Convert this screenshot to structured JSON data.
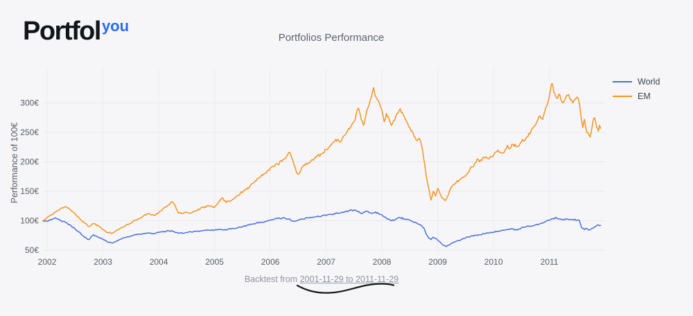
{
  "logo": {
    "word": "Portfol",
    "accent": "you"
  },
  "backtest": {
    "prefix": "Backtest from",
    "range": "2001-11-29 to 2011-11-29"
  },
  "chart_data": {
    "type": "line",
    "title": "Portfolios Performance",
    "xlabel": "",
    "ylabel": "Performance of 100€",
    "xlim": [
      2001.925,
      2012.01
    ],
    "ylim": [
      46.5,
      359.4
    ],
    "xticks": [
      2002,
      2003,
      2004,
      2005,
      2006,
      2007,
      2008,
      2009,
      2010,
      2011
    ],
    "yticks": [
      50,
      100,
      150,
      200,
      250,
      300
    ],
    "ytick_suffix": "€",
    "grid": true,
    "legend_position": "top-right",
    "series": [
      {
        "name": "World",
        "color": "#4a6fd9",
        "points": [
          [
            2001.92,
            100
          ],
          [
            2002.0,
            99
          ],
          [
            2002.08,
            102
          ],
          [
            2002.15,
            105
          ],
          [
            2002.25,
            100
          ],
          [
            2002.33,
            97
          ],
          [
            2002.42,
            92
          ],
          [
            2002.5,
            86
          ],
          [
            2002.58,
            80
          ],
          [
            2002.67,
            72
          ],
          [
            2002.75,
            68
          ],
          [
            2002.83,
            76
          ],
          [
            2002.92,
            72
          ],
          [
            2003.0,
            69
          ],
          [
            2003.08,
            64
          ],
          [
            2003.17,
            62
          ],
          [
            2003.25,
            66
          ],
          [
            2003.33,
            69
          ],
          [
            2003.42,
            72
          ],
          [
            2003.5,
            74
          ],
          [
            2003.58,
            76
          ],
          [
            2003.67,
            77
          ],
          [
            2003.75,
            78
          ],
          [
            2003.83,
            79
          ],
          [
            2003.92,
            78
          ],
          [
            2004.0,
            80
          ],
          [
            2004.08,
            81
          ],
          [
            2004.17,
            83
          ],
          [
            2004.25,
            82
          ],
          [
            2004.33,
            80
          ],
          [
            2004.42,
            79
          ],
          [
            2004.5,
            80
          ],
          [
            2004.58,
            81
          ],
          [
            2004.67,
            82
          ],
          [
            2004.75,
            83
          ],
          [
            2004.83,
            84
          ],
          [
            2004.92,
            84
          ],
          [
            2005.0,
            84
          ],
          [
            2005.08,
            85
          ],
          [
            2005.17,
            84
          ],
          [
            2005.25,
            86
          ],
          [
            2005.33,
            87
          ],
          [
            2005.42,
            88
          ],
          [
            2005.5,
            90
          ],
          [
            2005.58,
            92
          ],
          [
            2005.67,
            94
          ],
          [
            2005.75,
            96
          ],
          [
            2005.83,
            97
          ],
          [
            2005.92,
            99
          ],
          [
            2006.0,
            101
          ],
          [
            2006.08,
            103
          ],
          [
            2006.17,
            104
          ],
          [
            2006.25,
            105
          ],
          [
            2006.33,
            103
          ],
          [
            2006.42,
            99
          ],
          [
            2006.5,
            101
          ],
          [
            2006.58,
            103
          ],
          [
            2006.67,
            105
          ],
          [
            2006.75,
            106
          ],
          [
            2006.83,
            107
          ],
          [
            2006.92,
            108
          ],
          [
            2007.0,
            109
          ],
          [
            2007.08,
            111
          ],
          [
            2007.17,
            112
          ],
          [
            2007.25,
            113
          ],
          [
            2007.33,
            115
          ],
          [
            2007.42,
            117
          ],
          [
            2007.5,
            118
          ],
          [
            2007.58,
            116
          ],
          [
            2007.63,
            112
          ],
          [
            2007.67,
            114
          ],
          [
            2007.75,
            116
          ],
          [
            2007.83,
            113
          ],
          [
            2007.92,
            114
          ],
          [
            2008.0,
            110
          ],
          [
            2008.08,
            104
          ],
          [
            2008.17,
            100
          ],
          [
            2008.25,
            103
          ],
          [
            2008.33,
            105
          ],
          [
            2008.42,
            103
          ],
          [
            2008.5,
            101
          ],
          [
            2008.58,
            97
          ],
          [
            2008.67,
            94
          ],
          [
            2008.75,
            88
          ],
          [
            2008.79,
            78
          ],
          [
            2008.83,
            72
          ],
          [
            2008.88,
            68
          ],
          [
            2008.92,
            72
          ],
          [
            2009.0,
            67
          ],
          [
            2009.08,
            60
          ],
          [
            2009.15,
            56
          ],
          [
            2009.21,
            59
          ],
          [
            2009.25,
            62
          ],
          [
            2009.33,
            65
          ],
          [
            2009.42,
            68
          ],
          [
            2009.5,
            71
          ],
          [
            2009.58,
            73
          ],
          [
            2009.67,
            75
          ],
          [
            2009.75,
            76
          ],
          [
            2009.83,
            78
          ],
          [
            2009.92,
            79
          ],
          [
            2010.0,
            81
          ],
          [
            2010.08,
            82
          ],
          [
            2010.17,
            84
          ],
          [
            2010.25,
            85
          ],
          [
            2010.33,
            86
          ],
          [
            2010.42,
            84
          ],
          [
            2010.5,
            88
          ],
          [
            2010.58,
            90
          ],
          [
            2010.67,
            91
          ],
          [
            2010.75,
            93
          ],
          [
            2010.83,
            95
          ],
          [
            2010.92,
            98
          ],
          [
            2011.0,
            101
          ],
          [
            2011.08,
            104
          ],
          [
            2011.13,
            105
          ],
          [
            2011.17,
            103
          ],
          [
            2011.25,
            102
          ],
          [
            2011.33,
            103
          ],
          [
            2011.42,
            102
          ],
          [
            2011.5,
            101
          ],
          [
            2011.54,
            100
          ],
          [
            2011.58,
            88
          ],
          [
            2011.63,
            85
          ],
          [
            2011.67,
            87
          ],
          [
            2011.71,
            84
          ],
          [
            2011.75,
            86
          ],
          [
            2011.79,
            88
          ],
          [
            2011.83,
            90
          ],
          [
            2011.88,
            93
          ],
          [
            2011.92,
            92
          ]
        ]
      },
      {
        "name": "EM",
        "color": "#f7921e",
        "points": [
          [
            2001.92,
            100
          ],
          [
            2002.0,
            105
          ],
          [
            2002.08,
            110
          ],
          [
            2002.17,
            116
          ],
          [
            2002.25,
            121
          ],
          [
            2002.33,
            124
          ],
          [
            2002.42,
            118
          ],
          [
            2002.5,
            112
          ],
          [
            2002.58,
            104
          ],
          [
            2002.67,
            96
          ],
          [
            2002.75,
            90
          ],
          [
            2002.83,
            95
          ],
          [
            2002.92,
            91
          ],
          [
            2003.0,
            85
          ],
          [
            2003.08,
            80
          ],
          [
            2003.17,
            79
          ],
          [
            2003.25,
            84
          ],
          [
            2003.33,
            88
          ],
          [
            2003.42,
            93
          ],
          [
            2003.5,
            96
          ],
          [
            2003.58,
            101
          ],
          [
            2003.67,
            105
          ],
          [
            2003.75,
            110
          ],
          [
            2003.83,
            112
          ],
          [
            2003.92,
            109
          ],
          [
            2004.0,
            114
          ],
          [
            2004.08,
            121
          ],
          [
            2004.17,
            127
          ],
          [
            2004.25,
            132
          ],
          [
            2004.3,
            124
          ],
          [
            2004.35,
            113
          ],
          [
            2004.42,
            112
          ],
          [
            2004.5,
            114
          ],
          [
            2004.58,
            113
          ],
          [
            2004.67,
            117
          ],
          [
            2004.75,
            121
          ],
          [
            2004.83,
            124
          ],
          [
            2004.92,
            125
          ],
          [
            2005.0,
            123
          ],
          [
            2005.08,
            132
          ],
          [
            2005.13,
            139
          ],
          [
            2005.21,
            131
          ],
          [
            2005.29,
            134
          ],
          [
            2005.38,
            140
          ],
          [
            2005.46,
            146
          ],
          [
            2005.54,
            152
          ],
          [
            2005.63,
            158
          ],
          [
            2005.71,
            165
          ],
          [
            2005.79,
            172
          ],
          [
            2005.88,
            179
          ],
          [
            2005.96,
            186
          ],
          [
            2006.04,
            192
          ],
          [
            2006.13,
            196
          ],
          [
            2006.21,
            201
          ],
          [
            2006.29,
            209
          ],
          [
            2006.35,
            216
          ],
          [
            2006.42,
            196
          ],
          [
            2006.46,
            185
          ],
          [
            2006.5,
            179
          ],
          [
            2006.58,
            192
          ],
          [
            2006.67,
            198
          ],
          [
            2006.75,
            204
          ],
          [
            2006.83,
            208
          ],
          [
            2006.92,
            214
          ],
          [
            2007.0,
            221
          ],
          [
            2007.08,
            228
          ],
          [
            2007.17,
            238
          ],
          [
            2007.25,
            233
          ],
          [
            2007.33,
            245
          ],
          [
            2007.42,
            256
          ],
          [
            2007.5,
            268
          ],
          [
            2007.54,
            282
          ],
          [
            2007.58,
            291
          ],
          [
            2007.63,
            272
          ],
          [
            2007.67,
            262
          ],
          [
            2007.71,
            278
          ],
          [
            2007.75,
            292
          ],
          [
            2007.79,
            305
          ],
          [
            2007.83,
            318
          ],
          [
            2007.85,
            326
          ],
          [
            2007.88,
            312
          ],
          [
            2007.92,
            305
          ],
          [
            2007.96,
            298
          ],
          [
            2008.0,
            288
          ],
          [
            2008.04,
            268
          ],
          [
            2008.08,
            282
          ],
          [
            2008.13,
            272
          ],
          [
            2008.17,
            262
          ],
          [
            2008.21,
            270
          ],
          [
            2008.25,
            278
          ],
          [
            2008.33,
            290
          ],
          [
            2008.38,
            280
          ],
          [
            2008.42,
            272
          ],
          [
            2008.5,
            258
          ],
          [
            2008.58,
            242
          ],
          [
            2008.63,
            236
          ],
          [
            2008.67,
            240
          ],
          [
            2008.71,
            228
          ],
          [
            2008.75,
            205
          ],
          [
            2008.79,
            178
          ],
          [
            2008.83,
            158
          ],
          [
            2008.88,
            135
          ],
          [
            2008.92,
            150
          ],
          [
            2008.96,
            142
          ],
          [
            2009.0,
            155
          ],
          [
            2009.04,
            146
          ],
          [
            2009.08,
            138
          ],
          [
            2009.13,
            134
          ],
          [
            2009.17,
            140
          ],
          [
            2009.21,
            150
          ],
          [
            2009.25,
            158
          ],
          [
            2009.33,
            165
          ],
          [
            2009.42,
            172
          ],
          [
            2009.5,
            176
          ],
          [
            2009.58,
            188
          ],
          [
            2009.67,
            198
          ],
          [
            2009.71,
            205
          ],
          [
            2009.75,
            200
          ],
          [
            2009.83,
            208
          ],
          [
            2009.92,
            205
          ],
          [
            2010.0,
            211
          ],
          [
            2010.08,
            220
          ],
          [
            2010.17,
            215
          ],
          [
            2010.25,
            228
          ],
          [
            2010.29,
            222
          ],
          [
            2010.33,
            230
          ],
          [
            2010.42,
            226
          ],
          [
            2010.5,
            234
          ],
          [
            2010.58,
            240
          ],
          [
            2010.67,
            252
          ],
          [
            2010.75,
            262
          ],
          [
            2010.79,
            270
          ],
          [
            2010.83,
            278
          ],
          [
            2010.88,
            272
          ],
          [
            2010.92,
            286
          ],
          [
            2010.96,
            296
          ],
          [
            2011.0,
            312
          ],
          [
            2011.02,
            322
          ],
          [
            2011.05,
            333
          ],
          [
            2011.08,
            318
          ],
          [
            2011.13,
            308
          ],
          [
            2011.17,
            315
          ],
          [
            2011.21,
            305
          ],
          [
            2011.25,
            300
          ],
          [
            2011.29,
            308
          ],
          [
            2011.33,
            313
          ],
          [
            2011.38,
            305
          ],
          [
            2011.42,
            300
          ],
          [
            2011.46,
            306
          ],
          [
            2011.5,
            310
          ],
          [
            2011.54,
            298
          ],
          [
            2011.58,
            268
          ],
          [
            2011.6,
            258
          ],
          [
            2011.63,
            272
          ],
          [
            2011.65,
            260
          ],
          [
            2011.67,
            250
          ],
          [
            2011.71,
            246
          ],
          [
            2011.73,
            242
          ],
          [
            2011.75,
            250
          ],
          [
            2011.77,
            262
          ],
          [
            2011.79,
            272
          ],
          [
            2011.81,
            275
          ],
          [
            2011.83,
            268
          ],
          [
            2011.85,
            258
          ],
          [
            2011.88,
            252
          ],
          [
            2011.9,
            262
          ],
          [
            2011.92,
            257
          ]
        ]
      }
    ]
  }
}
